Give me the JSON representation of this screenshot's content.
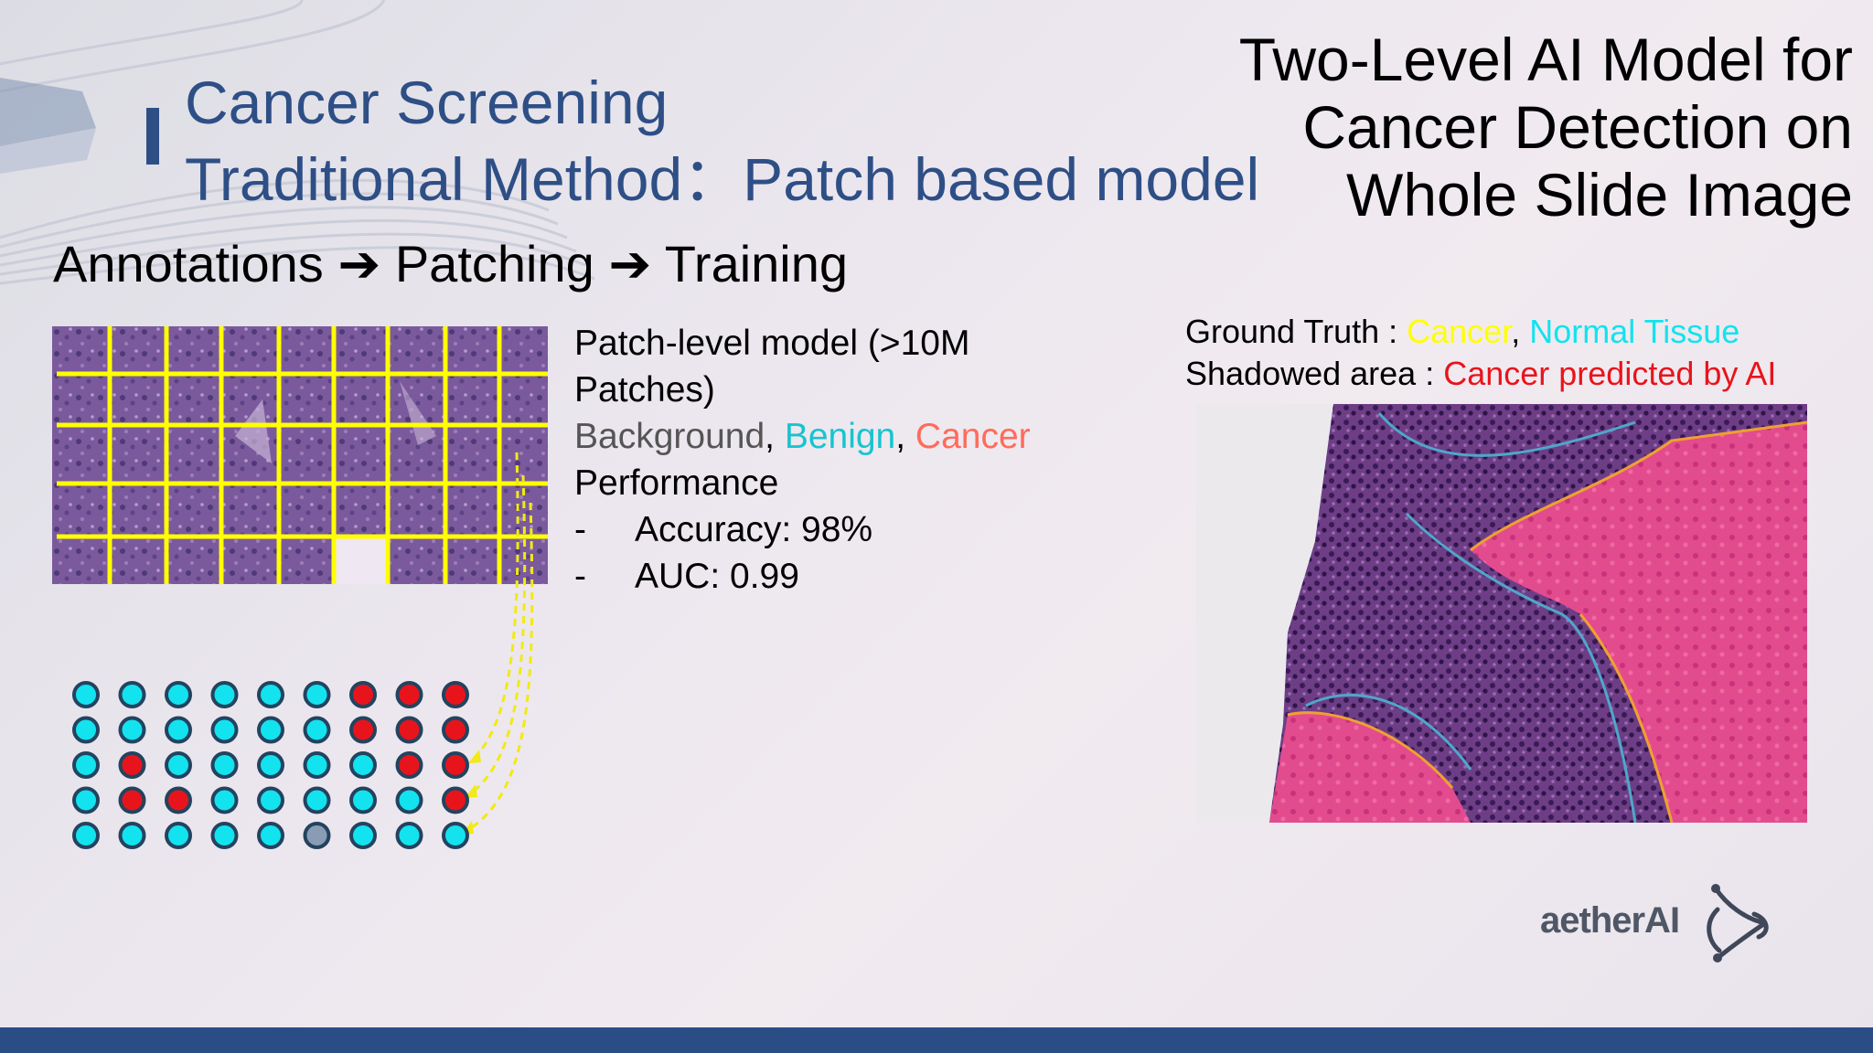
{
  "slide": {
    "title_line1": "Cancer Screening",
    "title_line2": "Traditional Method：Patch based model",
    "side_title_lines": [
      "Two-Level AI Model for",
      "Cancer Detection on",
      "Whole Slide Image"
    ],
    "pipeline_step1": "Annotations",
    "pipeline_step2": "Patching",
    "pipeline_step3": "Training"
  },
  "model_info": {
    "line1": "Patch-level model (>10M",
    "line2": "Patches)",
    "class_background": "Background",
    "class_benign": "Benign",
    "class_cancer": "Cancer",
    "performance_label": "Performance",
    "bullets": [
      {
        "dash": "-",
        "text": "Accuracy: 98%"
      },
      {
        "dash": "-",
        "text": "AUC: 0.99"
      }
    ]
  },
  "legend": {
    "ground_truth_label": "Ground Truth :",
    "gt_cancer": "Cancer",
    "gt_normal": "Normal Tissue",
    "shadowed_label": "Shadowed area :",
    "shadowed_value": "Cancer predicted by AI"
  },
  "logo": {
    "text": "aetherAI"
  },
  "colors": {
    "title_blue": "#2e4f86",
    "benign_cyan": "#17c4cf",
    "cancer_salmon": "#ff6b5a",
    "cancer_red": "#e8141c",
    "cancer_yellow": "#ffff00",
    "normal_cyan": "#12e3ef",
    "background_gray": "#555555",
    "bottom_bar": "#2b4d85"
  },
  "dot_grid": {
    "rows": [
      [
        "benign",
        "benign",
        "benign",
        "benign",
        "benign",
        "benign",
        "cancer",
        "cancer",
        "cancer"
      ],
      [
        "benign",
        "benign",
        "benign",
        "benign",
        "benign",
        "benign",
        "cancer",
        "cancer",
        "cancer"
      ],
      [
        "benign",
        "cancer",
        "benign",
        "benign",
        "benign",
        "benign",
        "benign",
        "cancer",
        "cancer"
      ],
      [
        "benign",
        "cancer",
        "cancer",
        "benign",
        "benign",
        "benign",
        "benign",
        "benign",
        "cancer"
      ],
      [
        "benign",
        "benign",
        "benign",
        "benign",
        "benign",
        "background",
        "benign",
        "benign",
        "benign"
      ]
    ]
  }
}
